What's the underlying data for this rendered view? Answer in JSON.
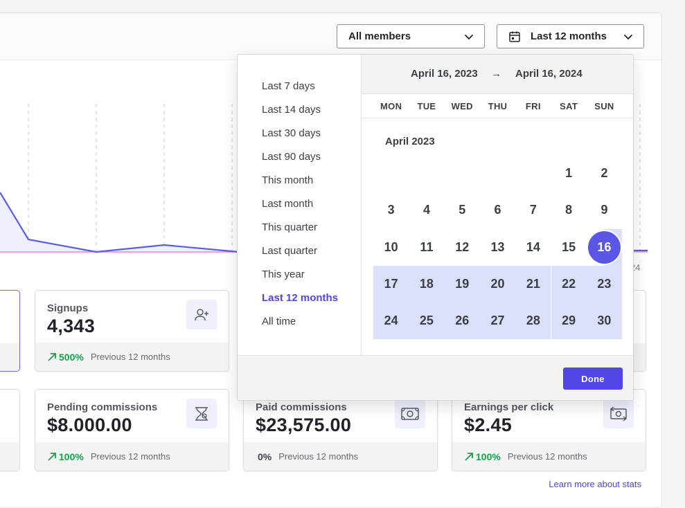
{
  "filters": {
    "members_label": "All members",
    "period_label": "Last 12 months"
  },
  "chart_axis_fragment": "24",
  "cards_row1": [
    {
      "label": "Signups",
      "value": "4,343",
      "change": "500%",
      "change_dir": "up",
      "compare": "Previous 12 months",
      "icon": "user-plus-icon"
    }
  ],
  "cards_row2": [
    {
      "label": "Pending commissions",
      "value": "$8.000.00",
      "change": "100%",
      "change_dir": "up",
      "compare": "Previous 12 months",
      "icon": "hourglass-money-icon"
    },
    {
      "label": "Paid commissions",
      "value": "$23,575.00",
      "change": "0%",
      "change_dir": "flat",
      "compare": "Previous 12 months",
      "icon": "banknote-icon"
    },
    {
      "label": "Earnings per click",
      "value": "$2.45",
      "change": "100%",
      "change_dir": "up",
      "compare": "Previous 12 months",
      "icon": "banknote-exchange-icon"
    }
  ],
  "learn_more": "Learn more about stats",
  "datepicker": {
    "presets": [
      "Last 7 days",
      "Last 14 days",
      "Last 30 days",
      "Last 90 days",
      "This month",
      "Last month",
      "This quarter",
      "Last quarter",
      "This year",
      "Last 12 months",
      "All time"
    ],
    "active_preset": "Last 12 months",
    "range_start": "April 16, 2023",
    "range_arrow": "→",
    "range_end": "April 16, 2024",
    "weekdays": [
      "MON",
      "TUE",
      "WED",
      "THU",
      "FRI",
      "SAT",
      "SUN"
    ],
    "month_title": "April 2023",
    "days": [
      [
        "",
        "",
        "",
        "",
        "",
        "1",
        "2"
      ],
      [
        "3",
        "4",
        "5",
        "6",
        "7",
        "8",
        "9"
      ],
      [
        "10",
        "11",
        "12",
        "13",
        "14",
        "15",
        "16"
      ],
      [
        "17",
        "18",
        "19",
        "20",
        "21",
        "22",
        "23"
      ],
      [
        "24",
        "25",
        "26",
        "27",
        "28",
        "29",
        "30"
      ]
    ],
    "selected_day": "16",
    "in_range_from": "16",
    "done_label": "Done"
  },
  "colors": {
    "accent": "#4f46e5",
    "range_fill": "#dcdffa",
    "selected_day": "#5b57e6",
    "positive": "#16a34a",
    "chart_line": "#5b5be6",
    "chart_baseline": "#e879c4"
  }
}
